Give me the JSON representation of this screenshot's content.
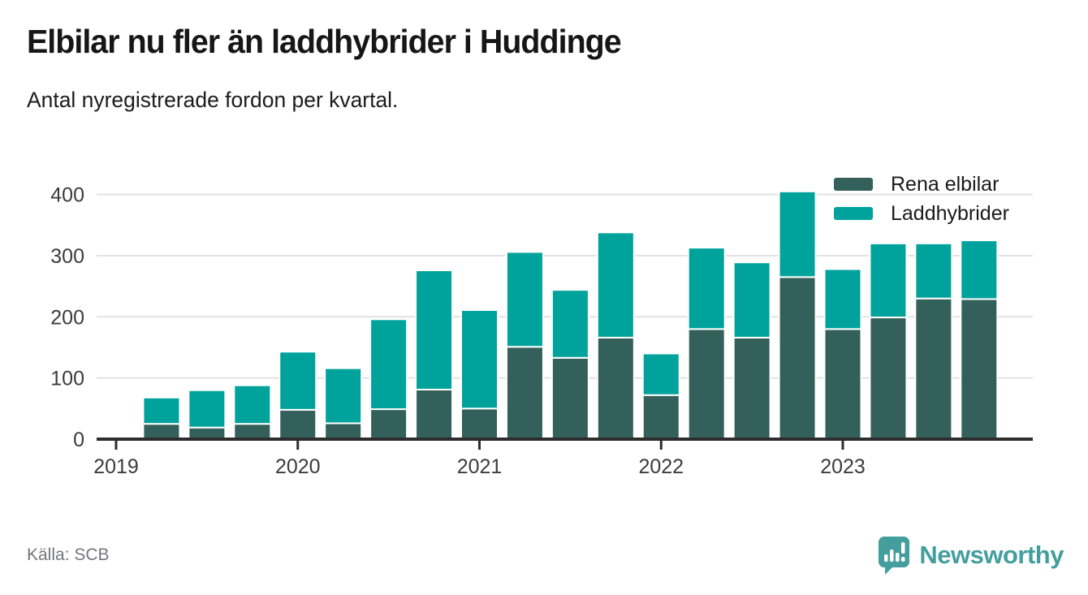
{
  "header": {
    "title": "Elbilar nu fler än laddhybrider i Huddinge",
    "subtitle": "Antal nyregistrerade fordon per kvartal."
  },
  "chart_data": {
    "type": "bar",
    "stacked": true,
    "title": "Elbilar nu fler än laddhybrider i Huddinge",
    "subtitle": "Antal nyregistrerade fordon per kvartal.",
    "xlabel": "",
    "ylabel": "",
    "categories": [
      "2019K1",
      "2019K2",
      "2019K3",
      "2019K4",
      "2020K1",
      "2020K2",
      "2020K3",
      "2020K4",
      "2021K1",
      "2021K2",
      "2021K3",
      "2021K4",
      "2022K1",
      "2022K2",
      "2022K3",
      "2022K4",
      "2023K1",
      "2023K2",
      "2023K3",
      "2023K4"
    ],
    "series": [
      {
        "name": "Rena elbilar",
        "color": "#33605a",
        "values": [
          null,
          25,
          19,
          25,
          48,
          26,
          49,
          81,
          50,
          151,
          133,
          166,
          72,
          180,
          166,
          265,
          180,
          199,
          230,
          229
        ]
      },
      {
        "name": "Laddhybrider",
        "color": "#00a39b",
        "values": [
          null,
          43,
          61,
          63,
          95,
          90,
          147,
          195,
          161,
          155,
          111,
          172,
          68,
          133,
          123,
          140,
          98,
          121,
          90,
          96
        ]
      }
    ],
    "ylim": [
      0,
      440
    ],
    "yticks": [
      0,
      100,
      200,
      300,
      400
    ],
    "year_ticks": [
      {
        "label": "2019",
        "category_index": 0
      },
      {
        "label": "2020",
        "category_index": 4
      },
      {
        "label": "2021",
        "category_index": 8
      },
      {
        "label": "2022",
        "category_index": 12
      },
      {
        "label": "2023",
        "category_index": 16
      }
    ],
    "grid": true,
    "legend_position": "top-right"
  },
  "footer": {
    "source": "Källa: SCB",
    "brand": "Newsworthy",
    "logo_icon": "speech-bubble-bar-chart-icon"
  }
}
